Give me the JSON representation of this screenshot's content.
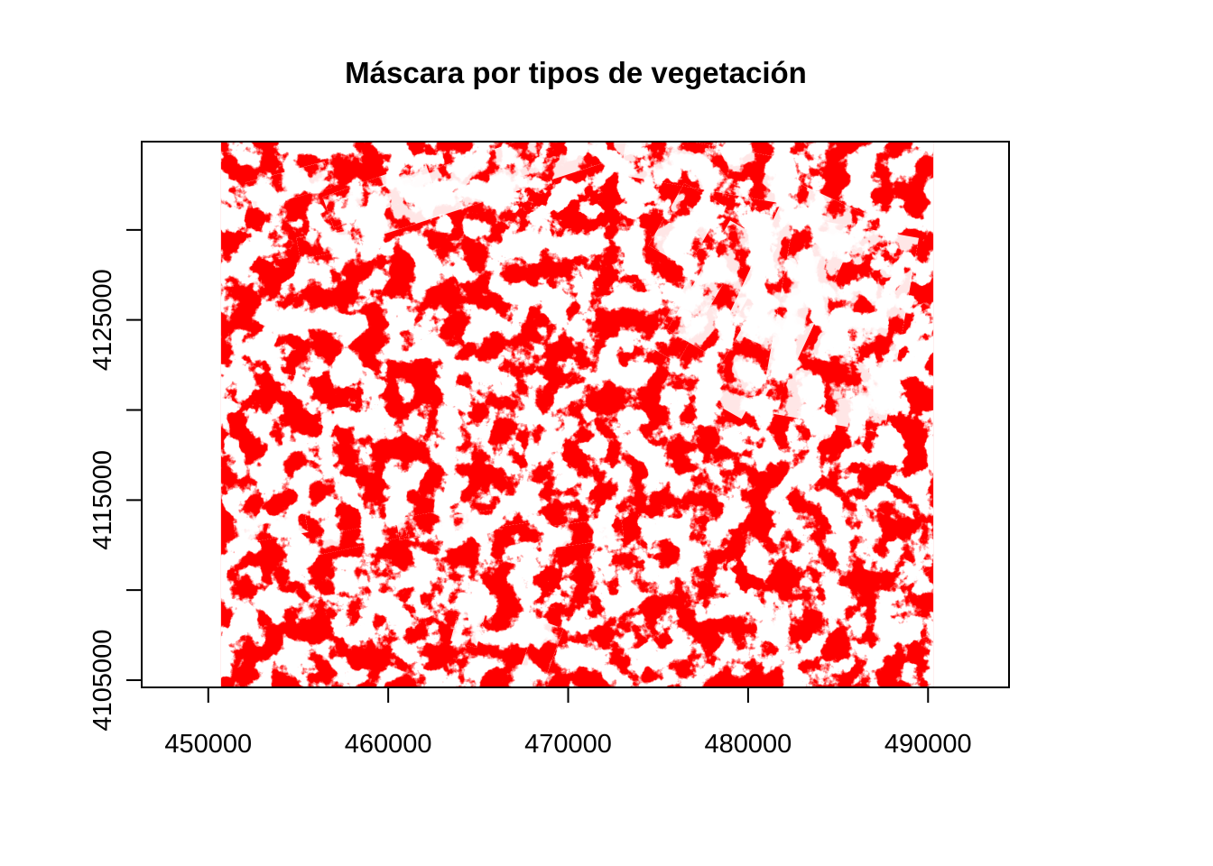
{
  "title": "Máscara por tipos de vegetación",
  "chart_data": {
    "type": "raster-map",
    "title": "Máscara por tipos de vegetación",
    "xlabel": "",
    "ylabel": "",
    "xlim": [
      446300,
      494500
    ],
    "ylim": [
      4104600,
      4134900
    ],
    "raster_extent": {
      "x": [
        450700,
        490300
      ],
      "y": [
        4104600,
        4134900
      ]
    },
    "mask_color": "#FF0000",
    "background_color": "#FFFFFF",
    "x_ticks": [
      450000,
      460000,
      470000,
      480000,
      490000
    ],
    "x_tick_labels": [
      "450000",
      "460000",
      "470000",
      "480000",
      "490000"
    ],
    "y_ticks": [
      4105000,
      4110000,
      4115000,
      4120000,
      4125000,
      4130000
    ],
    "y_tick_labels": [
      "4105000",
      "",
      "4115000",
      "",
      "4125000",
      ""
    ],
    "legend": "none",
    "grid": false
  }
}
